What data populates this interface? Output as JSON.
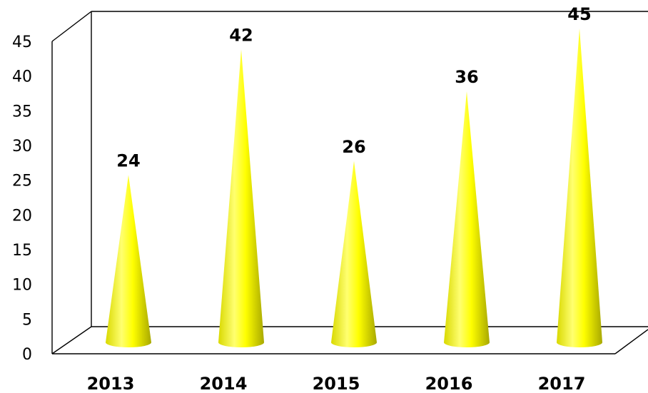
{
  "chart_data": {
    "type": "bar",
    "shape": "cone",
    "categories": [
      "2013",
      "2014",
      "2015",
      "2016",
      "2017"
    ],
    "values": [
      24,
      42,
      26,
      36,
      45
    ],
    "data_labels": [
      "24",
      "42",
      "26",
      "36",
      "45"
    ],
    "y_ticks": [
      "0",
      "5",
      "10",
      "15",
      "20",
      "25",
      "30",
      "35",
      "40",
      "45"
    ],
    "ylim": [
      0,
      45
    ],
    "title": "",
    "xlabel": "",
    "ylabel": "",
    "grid": false,
    "legend": "none",
    "colors": {
      "cone_light": "#ffff66",
      "cone_mid": "#ffff00",
      "cone_dark": "#b8b800"
    }
  }
}
